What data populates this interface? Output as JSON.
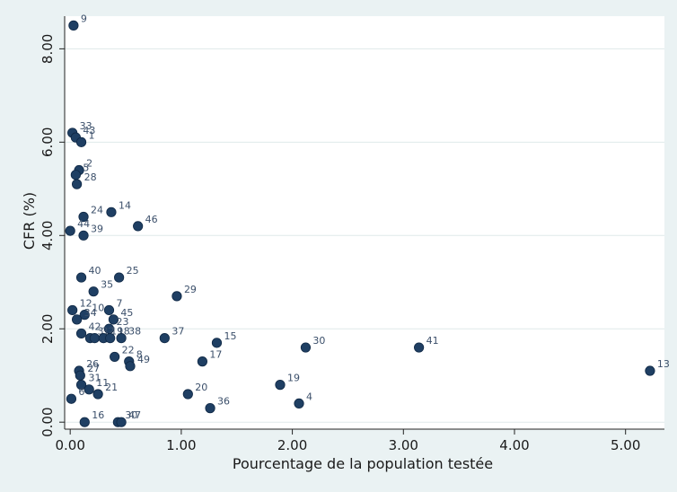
{
  "chart_data": {
    "type": "scatter",
    "xlabel": "Pourcentage de la population testée",
    "ylabel": "CFR (%)",
    "xlim": [
      -0.05,
      5.35
    ],
    "ylim": [
      -0.15,
      8.7
    ],
    "xticks": [
      0,
      1,
      2,
      3,
      4,
      5
    ],
    "xtick_labels": [
      "0.00",
      "1.00",
      "2.00",
      "3.00",
      "4.00",
      "5.00"
    ],
    "yticks": [
      0,
      2,
      4,
      6,
      8
    ],
    "ytick_labels": [
      "0.00",
      "2.00",
      "4.00",
      "6.00",
      "8.00"
    ],
    "grid": "horizontal",
    "colors": {
      "marker": "#1f3f63",
      "marker_edge": "#0f2845",
      "grid": "#dfe9ea",
      "label": "#3b4f6a"
    },
    "points": [
      {
        "label": "9",
        "x": 0.03,
        "y": 8.5
      },
      {
        "label": "33",
        "x": 0.02,
        "y": 6.2
      },
      {
        "label": "43",
        "x": 0.05,
        "y": 6.1
      },
      {
        "label": "1",
        "x": 0.1,
        "y": 6.0
      },
      {
        "label": "2",
        "x": 0.08,
        "y": 5.4
      },
      {
        "label": "5",
        "x": 0.05,
        "y": 5.3
      },
      {
        "label": "28",
        "x": 0.06,
        "y": 5.1
      },
      {
        "label": "24",
        "x": 0.12,
        "y": 4.4
      },
      {
        "label": "14",
        "x": 0.37,
        "y": 4.5
      },
      {
        "label": "46",
        "x": 0.61,
        "y": 4.2
      },
      {
        "label": "44",
        "x": 0.0,
        "y": 4.1
      },
      {
        "label": "39",
        "x": 0.12,
        "y": 4.0
      },
      {
        "label": "40",
        "x": 0.1,
        "y": 3.1
      },
      {
        "label": "25",
        "x": 0.44,
        "y": 3.1
      },
      {
        "label": "35",
        "x": 0.21,
        "y": 2.8
      },
      {
        "label": "29",
        "x": 0.96,
        "y": 2.7
      },
      {
        "label": "12",
        "x": 0.02,
        "y": 2.4
      },
      {
        "label": "7",
        "x": 0.35,
        "y": 2.4
      },
      {
        "label": "10",
        "x": 0.13,
        "y": 2.3
      },
      {
        "label": "34",
        "x": 0.06,
        "y": 2.2
      },
      {
        "label": "45",
        "x": 0.39,
        "y": 2.2
      },
      {
        "label": "23",
        "x": 0.35,
        "y": 2.0
      },
      {
        "label": "42",
        "x": 0.1,
        "y": 1.9
      },
      {
        "label": "3",
        "x": 0.18,
        "y": 1.8
      },
      {
        "label": "32",
        "x": 0.22,
        "y": 1.8
      },
      {
        "label": "19",
        "x": 0.3,
        "y": 1.8
      },
      {
        "label": "18",
        "x": 0.36,
        "y": 1.8
      },
      {
        "label": "38",
        "x": 0.46,
        "y": 1.8
      },
      {
        "label": "37",
        "x": 0.85,
        "y": 1.8
      },
      {
        "label": "15",
        "x": 1.32,
        "y": 1.7
      },
      {
        "label": "30",
        "x": 2.12,
        "y": 1.6
      },
      {
        "label": "41",
        "x": 3.14,
        "y": 1.6
      },
      {
        "label": "22",
        "x": 0.4,
        "y": 1.4
      },
      {
        "label": "8",
        "x": 0.53,
        "y": 1.3
      },
      {
        "label": "49",
        "x": 0.54,
        "y": 1.2
      },
      {
        "label": "17",
        "x": 1.19,
        "y": 1.3
      },
      {
        "label": "13",
        "x": 5.22,
        "y": 1.1
      },
      {
        "label": "26",
        "x": 0.08,
        "y": 1.1
      },
      {
        "label": "27",
        "x": 0.09,
        "y": 1.0
      },
      {
        "label": "31",
        "x": 0.1,
        "y": 0.8
      },
      {
        "label": "19",
        "x": 1.89,
        "y": 0.8
      },
      {
        "label": "11",
        "x": 0.17,
        "y": 0.7
      },
      {
        "label": "21",
        "x": 0.25,
        "y": 0.6
      },
      {
        "label": "20",
        "x": 1.06,
        "y": 0.6
      },
      {
        "label": "6",
        "x": 0.01,
        "y": 0.5
      },
      {
        "label": "4",
        "x": 2.06,
        "y": 0.4
      },
      {
        "label": "36",
        "x": 1.26,
        "y": 0.3
      },
      {
        "label": "16",
        "x": 0.13,
        "y": 0.0
      },
      {
        "label": "30",
        "x": 0.43,
        "y": 0.0
      },
      {
        "label": "47",
        "x": 0.46,
        "y": 0.0
      }
    ]
  }
}
